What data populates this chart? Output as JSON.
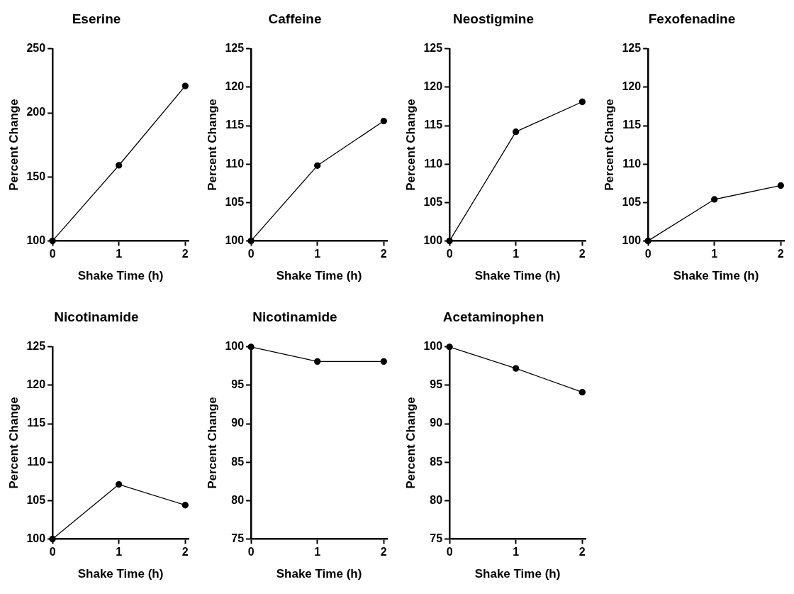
{
  "chart_data": [
    {
      "type": "line",
      "title": "Eserine",
      "xlabel": "Shake Time (h)",
      "ylabel": "Percent Change",
      "x": [
        0,
        1,
        2
      ],
      "xlim": [
        0,
        2.05
      ],
      "xticks": [
        0,
        1,
        2
      ],
      "ylim": [
        100,
        250
      ],
      "yticks": [
        100,
        150,
        200,
        250
      ],
      "marker": "circle",
      "series": [
        {
          "color": "#000000",
          "values": [
            100,
            159,
            221
          ]
        }
      ]
    },
    {
      "type": "line",
      "title": "Caffeine",
      "xlabel": "Shake Time (h)",
      "ylabel": "Percent Change",
      "x": [
        0,
        1,
        2
      ],
      "xlim": [
        0,
        2.05
      ],
      "xticks": [
        0,
        1,
        2
      ],
      "ylim": [
        100,
        125
      ],
      "yticks": [
        100,
        105,
        110,
        115,
        120,
        125
      ],
      "marker": "circle",
      "series": [
        {
          "color": "#000000",
          "values": [
            100,
            109.8,
            115.6
          ]
        }
      ]
    },
    {
      "type": "line",
      "title": "Neostigmine",
      "xlabel": "Shake Time (h)",
      "ylabel": "Percent Change",
      "x": [
        0,
        1,
        2
      ],
      "xlim": [
        0,
        2.05
      ],
      "xticks": [
        0,
        1,
        2
      ],
      "ylim": [
        100,
        125
      ],
      "yticks": [
        100,
        105,
        110,
        115,
        120,
        125
      ],
      "marker": "circle",
      "series": [
        {
          "color": "#000000",
          "values": [
            100,
            114.2,
            118.1
          ]
        }
      ]
    },
    {
      "type": "line",
      "title": "Fexofenadine",
      "xlabel": "Shake Time (h)",
      "ylabel": "Percent Change",
      "x": [
        0,
        1,
        2
      ],
      "xlim": [
        0,
        2.05
      ],
      "xticks": [
        0,
        1,
        2
      ],
      "ylim": [
        100,
        125
      ],
      "yticks": [
        100,
        105,
        110,
        115,
        120,
        125
      ],
      "marker": "circle",
      "series": [
        {
          "color": "#000000",
          "values": [
            100,
            105.4,
            107.2
          ]
        }
      ]
    },
    {
      "type": "line",
      "title": "Nicotinamide",
      "xlabel": "Shake Time (h)",
      "ylabel": "Percent Change",
      "x": [
        0,
        1,
        2
      ],
      "xlim": [
        0,
        2.05
      ],
      "xticks": [
        0,
        1,
        2
      ],
      "ylim": [
        100,
        125
      ],
      "yticks": [
        100,
        105,
        110,
        115,
        120,
        125
      ],
      "marker": "circle",
      "series": [
        {
          "color": "#000000",
          "values": [
            100,
            107.1,
            104.4
          ]
        }
      ]
    },
    {
      "type": "line",
      "title": "Nicotinamide",
      "xlabel": "Shake Time (h)",
      "ylabel": "Percent Change",
      "x": [
        0,
        1,
        2
      ],
      "xlim": [
        0,
        2.05
      ],
      "xticks": [
        0,
        1,
        2
      ],
      "ylim": [
        75,
        100
      ],
      "yticks": [
        75,
        80,
        85,
        90,
        95,
        100
      ],
      "marker": "circle",
      "series": [
        {
          "color": "#000000",
          "values": [
            100,
            98.1,
            98.1
          ]
        }
      ]
    },
    {
      "type": "line",
      "title": "Acetaminophen",
      "xlabel": "Shake Time (h)",
      "ylabel": "Percent Change",
      "x": [
        0,
        1,
        2
      ],
      "xlim": [
        0,
        2.05
      ],
      "xticks": [
        0,
        1,
        2
      ],
      "ylim": [
        75,
        100
      ],
      "yticks": [
        75,
        80,
        85,
        90,
        95,
        100
      ],
      "marker": "circle",
      "series": [
        {
          "color": "#000000",
          "values": [
            100,
            97.2,
            94.1
          ]
        }
      ]
    }
  ]
}
